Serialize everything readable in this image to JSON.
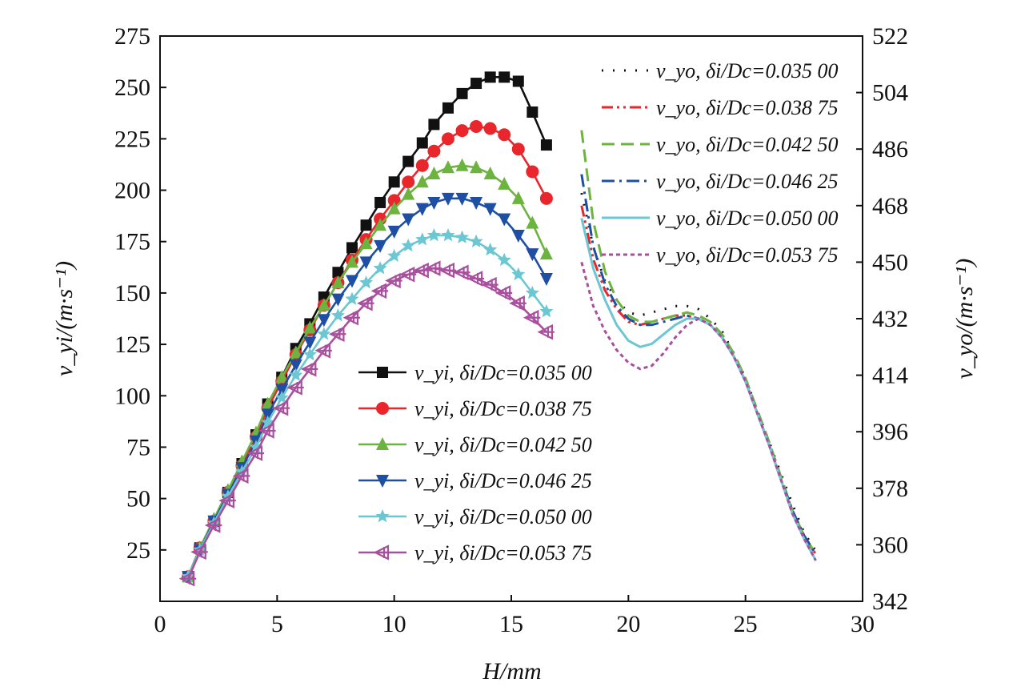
{
  "chart_data": {
    "type": "line",
    "xlabel": "H/mm",
    "ylabel_left": "v_yi/(m·s⁻¹)",
    "ylabel_right": "v_yo/(m·s⁻¹)",
    "xlim": [
      0,
      30
    ],
    "ylim_left": [
      0,
      275
    ],
    "ylim_right": [
      342,
      522
    ],
    "x_ticks": [
      0,
      5,
      10,
      15,
      20,
      25,
      30
    ],
    "y_left_ticks": [
      25,
      50,
      75,
      100,
      125,
      150,
      175,
      200,
      225,
      250,
      275
    ],
    "y_right_ticks": [
      342,
      360,
      378,
      396,
      414,
      432,
      450,
      468,
      486,
      504,
      522
    ],
    "series_inner": [
      {
        "name": "v_yi, δi/Dc=0.035 00",
        "color": "#111111",
        "marker": "square",
        "x": [
          1.2,
          1.7,
          2.3,
          2.9,
          3.5,
          4.1,
          4.6,
          5.2,
          5.8,
          6.4,
          7.0,
          7.6,
          8.2,
          8.8,
          9.4,
          10.0,
          10.6,
          11.2,
          11.7,
          12.3,
          12.9,
          13.5,
          14.1,
          14.7,
          15.3,
          15.9,
          16.5
        ],
        "y": [
          12,
          26,
          39,
          53,
          67,
          81,
          96,
          109,
          123,
          135,
          148,
          160,
          172,
          183,
          194,
          204,
          214,
          223,
          232,
          240,
          247,
          252,
          255,
          255,
          253,
          238,
          222
        ]
      },
      {
        "name": "v_yi, δi/Dc=0.038 75",
        "color": "#e8262b",
        "marker": "circle",
        "x": [
          1.2,
          1.7,
          2.3,
          2.9,
          3.5,
          4.1,
          4.6,
          5.2,
          5.8,
          6.4,
          7.0,
          7.6,
          8.2,
          8.8,
          9.4,
          10.0,
          10.6,
          11.2,
          11.7,
          12.3,
          12.9,
          13.5,
          14.1,
          14.7,
          15.3,
          15.9,
          16.5
        ],
        "y": [
          12,
          26,
          39,
          53,
          66,
          80,
          94,
          107,
          120,
          132,
          144,
          155,
          166,
          176,
          186,
          195,
          204,
          212,
          219,
          225,
          229,
          231,
          230,
          227,
          220,
          209,
          196
        ]
      },
      {
        "name": "v_yi, δi/Dc=0.042 50",
        "color": "#6db33f",
        "marker": "triangle-up",
        "x": [
          1.2,
          1.7,
          2.3,
          2.9,
          3.5,
          4.1,
          4.6,
          5.2,
          5.8,
          6.4,
          7.0,
          7.6,
          8.2,
          8.8,
          9.4,
          10.0,
          10.6,
          11.2,
          11.7,
          12.3,
          12.9,
          13.5,
          14.1,
          14.7,
          15.3,
          15.9,
          16.5
        ],
        "y": [
          12,
          26,
          40,
          54,
          68,
          82,
          96,
          109,
          121,
          133,
          144,
          155,
          165,
          174,
          183,
          191,
          198,
          204,
          208,
          211,
          212,
          211,
          208,
          203,
          196,
          184,
          169
        ]
      },
      {
        "name": "v_yi, δi/Dc=0.046 25",
        "color": "#1f4fa3",
        "marker": "triangle-down",
        "x": [
          1.2,
          1.7,
          2.3,
          2.9,
          3.5,
          4.1,
          4.6,
          5.2,
          5.8,
          6.4,
          7.0,
          7.6,
          8.2,
          8.8,
          9.4,
          10.0,
          10.6,
          11.2,
          11.7,
          12.3,
          12.9,
          13.5,
          14.1,
          14.7,
          15.3,
          15.9,
          16.5
        ],
        "y": [
          12,
          25,
          39,
          52,
          65,
          78,
          91,
          103,
          115,
          126,
          137,
          147,
          156,
          165,
          173,
          180,
          186,
          191,
          194,
          196,
          196,
          194,
          191,
          186,
          178,
          169,
          157
        ]
      },
      {
        "name": "v_yi, δi/Dc=0.050 00",
        "color": "#6cc7d3",
        "marker": "star",
        "x": [
          1.2,
          1.7,
          2.3,
          2.9,
          3.5,
          4.1,
          4.6,
          5.2,
          5.8,
          6.4,
          7.0,
          7.6,
          8.2,
          8.8,
          9.4,
          10.0,
          10.6,
          11.2,
          11.7,
          12.3,
          12.9,
          13.5,
          14.1,
          14.7,
          15.3,
          15.9,
          16.5
        ],
        "y": [
          12,
          25,
          38,
          51,
          63,
          75,
          87,
          99,
          110,
          120,
          130,
          139,
          147,
          155,
          162,
          168,
          173,
          176,
          178,
          178,
          177,
          175,
          171,
          166,
          159,
          150,
          141
        ]
      },
      {
        "name": "v_yi, δi/Dc=0.053 75",
        "color": "#a8509e",
        "marker": "triangle-left",
        "x": [
          1.2,
          1.7,
          2.3,
          2.9,
          3.5,
          4.1,
          4.6,
          5.2,
          5.8,
          6.4,
          7.0,
          7.6,
          8.2,
          8.8,
          9.4,
          10.0,
          10.6,
          11.2,
          11.7,
          12.3,
          12.9,
          13.5,
          14.1,
          14.7,
          15.3,
          15.9,
          16.5
        ],
        "y": [
          11,
          24,
          37,
          49,
          61,
          72,
          83,
          94,
          104,
          113,
          122,
          130,
          138,
          145,
          151,
          156,
          159,
          161,
          162,
          161,
          160,
          157,
          154,
          150,
          145,
          138,
          131
        ]
      }
    ],
    "series_outer": [
      {
        "name": "v_yo, δi/Dc=0.035 00",
        "color": "#111111",
        "dash": "2,12",
        "x": [
          18.0,
          18.5,
          19.0,
          19.5,
          20.0,
          20.5,
          21.0,
          21.5,
          22.0,
          22.5,
          23.0,
          23.5,
          24.0,
          24.5,
          25.0,
          25.5,
          26.0,
          26.5,
          27.0,
          27.5,
          28.0
        ],
        "y": [
          472,
          455,
          444,
          438,
          434,
          433,
          434,
          435,
          436,
          436,
          435,
          432,
          428,
          421,
          413,
          403,
          393,
          383,
          373,
          364,
          358
        ]
      },
      {
        "name": "v_yo, δi/Dc=0.038 75",
        "color": "#e8262b",
        "dash": "14,5,3,5,3,5",
        "x": [
          18.0,
          18.5,
          19.0,
          19.5,
          20.0,
          20.5,
          21.0,
          21.5,
          22.0,
          22.5,
          23.0,
          23.5,
          24.0,
          24.5,
          25.0,
          25.5,
          26.0,
          26.5,
          27.0,
          27.5,
          28.0
        ],
        "y": [
          468,
          451,
          441,
          435,
          431,
          430,
          431,
          432,
          433,
          433,
          432,
          430,
          426,
          420,
          412,
          402,
          392,
          381,
          371,
          363,
          357
        ]
      },
      {
        "name": "v_yo, δi/Dc=0.042 50",
        "color": "#6db33f",
        "dash": "16,8",
        "x": [
          18.0,
          18.5,
          19.0,
          19.5,
          20.0,
          20.5,
          21.0,
          21.5,
          22.0,
          22.5,
          23.0,
          23.5,
          24.0,
          24.5,
          25.0,
          25.5,
          26.0,
          26.5,
          27.0,
          27.5,
          28.0
        ],
        "y": [
          492,
          463,
          447,
          438,
          433,
          431,
          431,
          432,
          433,
          434,
          433,
          431,
          427,
          421,
          413,
          403,
          393,
          382,
          371,
          363,
          357
        ]
      },
      {
        "name": "v_yo, δi/Dc=0.046 25",
        "color": "#1f4fa3",
        "dash": "16,6,3,6",
        "x": [
          18.0,
          18.5,
          19.0,
          19.5,
          20.0,
          20.5,
          21.0,
          21.5,
          22.0,
          22.5,
          23.0,
          23.5,
          24.0,
          24.5,
          25.0,
          25.5,
          26.0,
          26.5,
          27.0,
          27.5,
          28.0
        ],
        "y": [
          478,
          455,
          443,
          436,
          432,
          430,
          430,
          431,
          432,
          433,
          432,
          430,
          426,
          420,
          412,
          402,
          392,
          381,
          371,
          363,
          357
        ]
      },
      {
        "name": "v_yo, δi/Dc=0.050 00",
        "color": "#6cc7d3",
        "dash": "none",
        "x": [
          18.0,
          18.5,
          19.0,
          19.5,
          20.0,
          20.5,
          21.0,
          21.5,
          22.0,
          22.5,
          23.0,
          23.5,
          24.0,
          24.5,
          25.0,
          25.5,
          26.0,
          26.5,
          27.0,
          27.5,
          28.0
        ],
        "y": [
          464,
          448,
          438,
          430,
          425,
          423,
          424,
          427,
          430,
          432,
          432,
          430,
          426,
          420,
          412,
          402,
          392,
          381,
          370,
          362,
          355
        ]
      },
      {
        "name": "v_yo, δi/Dc=0.053 75",
        "color": "#a8509e",
        "dash": "5,4",
        "x": [
          18.0,
          18.5,
          19.0,
          19.5,
          20.0,
          20.5,
          21.0,
          21.5,
          22.0,
          22.5,
          23.0,
          23.5,
          24.0,
          24.5,
          25.0,
          25.5,
          26.0,
          26.5,
          27.0,
          27.5,
          28.0
        ],
        "y": [
          450,
          436,
          428,
          422,
          418,
          416,
          417,
          421,
          426,
          430,
          432,
          430,
          426,
          420,
          412,
          402,
          392,
          381,
          370,
          362,
          355
        ]
      }
    ],
    "legend_inner_placement": "center-left",
    "legend_outer_placement": "top-right",
    "grid": false
  }
}
